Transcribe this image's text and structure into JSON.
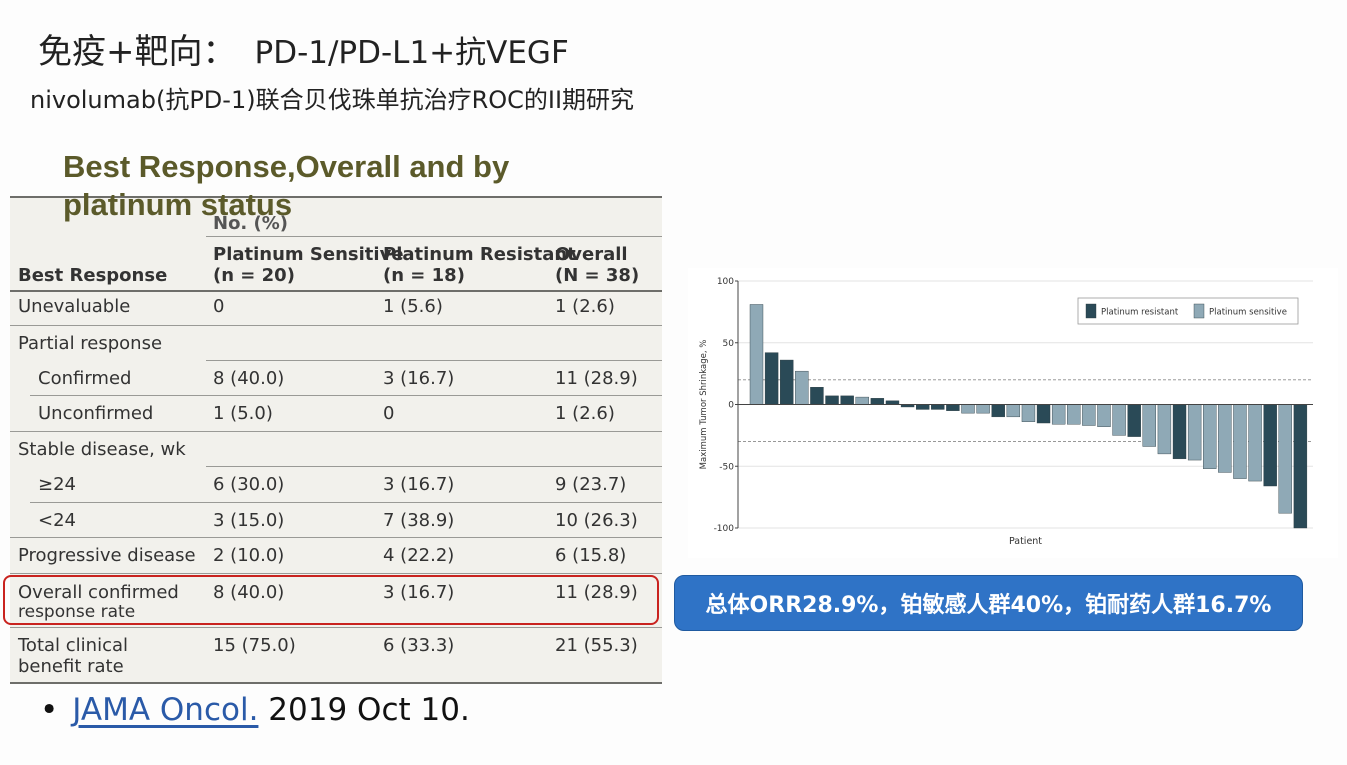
{
  "slide": {
    "title_cn": "免疫+靶向：",
    "title_en": "PD-1/PD-L1+抗VEGF",
    "subtitle": "nivolumab(抗PD-1)联合贝伐珠单抗治疗ROC的II期研究"
  },
  "table_section": {
    "heading": "Best Response,Overall and by platinum status",
    "no_pct_label": "No. (%)",
    "columns": [
      {
        "line1": "Best Response",
        "line2": ""
      },
      {
        "line1": "Platinum Sensitive",
        "line2": "(n = 20)"
      },
      {
        "line1": "Platinum Resistant",
        "line2": "(n = 18)"
      },
      {
        "line1": "Overall",
        "line2": "(N = 38)"
      }
    ],
    "rows": [
      {
        "label": "Unevaluable",
        "label2": "",
        "sensitive": "0",
        "resistant": "1 (5.6)",
        "overall": "1 (2.6)"
      },
      {
        "label": "Partial response",
        "label2": "",
        "sensitive": "",
        "resistant": "",
        "overall": ""
      },
      {
        "label": "Confirmed",
        "label2": "",
        "sensitive": "8 (40.0)",
        "resistant": "3 (16.7)",
        "overall": "11 (28.9)"
      },
      {
        "label": "Unconfirmed",
        "label2": "",
        "sensitive": "1 (5.0)",
        "resistant": "0",
        "overall": "1 (2.6)"
      },
      {
        "label": "Stable disease, wk",
        "label2": "",
        "sensitive": "",
        "resistant": "",
        "overall": ""
      },
      {
        "label": "≥24",
        "label2": "",
        "sensitive": "6 (30.0)",
        "resistant": "3 (16.7)",
        "overall": "9 (23.7)"
      },
      {
        "label": "<24",
        "label2": "",
        "sensitive": "3 (15.0)",
        "resistant": "7 (38.9)",
        "overall": "10 (26.3)"
      },
      {
        "label": "Progressive disease",
        "label2": "",
        "sensitive": "2 (10.0)",
        "resistant": "4 (22.2)",
        "overall": "6 (15.8)"
      },
      {
        "label": "Overall confirmed",
        "label2": "response rate",
        "sensitive": "8 (40.0)",
        "resistant": "3 (16.7)",
        "overall": "11 (28.9)"
      },
      {
        "label": "Total clinical",
        "label2": "benefit rate",
        "sensitive": "15 (75.0)",
        "resistant": "6 (33.3)",
        "overall": "21 (55.3)"
      }
    ]
  },
  "citation": {
    "bullet": "•",
    "journal": "JAMA Oncol.",
    "date": " 2019 Oct 10."
  },
  "orr_summary": "总体ORR28.9%，铂敏感人群40%，铂耐药人群16.7%",
  "colors": {
    "resistant": "#2a4a57",
    "sensitive": "#8fa9b6",
    "highlight": "#c9231f",
    "orr_box": "#2f73c6",
    "heading": "#5b5a2a"
  },
  "chart_data": {
    "type": "bar",
    "title": "",
    "xlabel": "Patient",
    "ylabel": "Maximum Tumor Shrinkage, %",
    "ylim": [
      -100,
      100
    ],
    "yticks": [
      100,
      50,
      0,
      -50,
      -100
    ],
    "reference_lines": [
      20,
      -30
    ],
    "grid": true,
    "legend": "top-right",
    "series": [
      {
        "name": "Platinum resistant",
        "color": "#2a4a57"
      },
      {
        "name": "Platinum sensitive",
        "color": "#8fa9b6"
      }
    ],
    "bars": [
      {
        "value": 81,
        "group": "Platinum sensitive"
      },
      {
        "value": 42,
        "group": "Platinum resistant"
      },
      {
        "value": 36,
        "group": "Platinum resistant"
      },
      {
        "value": 27,
        "group": "Platinum sensitive"
      },
      {
        "value": 14,
        "group": "Platinum resistant"
      },
      {
        "value": 7,
        "group": "Platinum resistant"
      },
      {
        "value": 7,
        "group": "Platinum resistant"
      },
      {
        "value": 6,
        "group": "Platinum sensitive"
      },
      {
        "value": 5,
        "group": "Platinum resistant"
      },
      {
        "value": 3,
        "group": "Platinum resistant"
      },
      {
        "value": -2,
        "group": "Platinum resistant"
      },
      {
        "value": -4,
        "group": "Platinum resistant"
      },
      {
        "value": -4,
        "group": "Platinum resistant"
      },
      {
        "value": -5,
        "group": "Platinum resistant"
      },
      {
        "value": -7,
        "group": "Platinum sensitive"
      },
      {
        "value": -7,
        "group": "Platinum sensitive"
      },
      {
        "value": -10,
        "group": "Platinum resistant"
      },
      {
        "value": -10,
        "group": "Platinum sensitive"
      },
      {
        "value": -14,
        "group": "Platinum sensitive"
      },
      {
        "value": -15,
        "group": "Platinum resistant"
      },
      {
        "value": -16,
        "group": "Platinum sensitive"
      },
      {
        "value": -16,
        "group": "Platinum sensitive"
      },
      {
        "value": -17,
        "group": "Platinum sensitive"
      },
      {
        "value": -18,
        "group": "Platinum sensitive"
      },
      {
        "value": -25,
        "group": "Platinum sensitive"
      },
      {
        "value": -26,
        "group": "Platinum resistant"
      },
      {
        "value": -34,
        "group": "Platinum sensitive"
      },
      {
        "value": -40,
        "group": "Platinum sensitive"
      },
      {
        "value": -44,
        "group": "Platinum resistant"
      },
      {
        "value": -45,
        "group": "Platinum sensitive"
      },
      {
        "value": -52,
        "group": "Platinum sensitive"
      },
      {
        "value": -55,
        "group": "Platinum sensitive"
      },
      {
        "value": -60,
        "group": "Platinum sensitive"
      },
      {
        "value": -62,
        "group": "Platinum sensitive"
      },
      {
        "value": -66,
        "group": "Platinum resistant"
      },
      {
        "value": -88,
        "group": "Platinum sensitive"
      },
      {
        "value": -100,
        "group": "Platinum resistant"
      }
    ]
  }
}
